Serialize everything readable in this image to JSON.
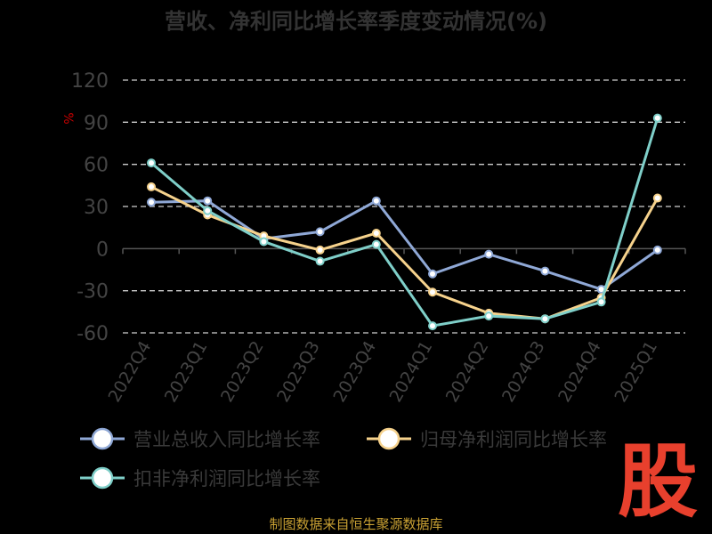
{
  "chart_data": {
    "type": "line",
    "title": "营收、净利同比增长率季度变动情况(%)",
    "unit_label": "%",
    "categories": [
      "2022Q4",
      "2023Q1",
      "2023Q2",
      "2023Q3",
      "2023Q4",
      "2024Q1",
      "2024Q2",
      "2024Q3",
      "2024Q4",
      "2025Q1"
    ],
    "ylim": [
      -60,
      120
    ],
    "yticks": [
      120,
      90,
      60,
      30,
      0,
      -30,
      -60
    ],
    "grid": true,
    "legend_position": "bottom",
    "series": [
      {
        "name": "营业总收入同比增长率",
        "color": "#8fa8d6",
        "values": [
          33,
          34,
          7,
          12,
          34,
          -18,
          -4,
          -16,
          -29,
          -1
        ]
      },
      {
        "name": "归母净利润同比增长率",
        "color": "#f6d28c",
        "values": [
          44,
          24,
          9,
          -1,
          11,
          -31,
          -46,
          -50,
          -35,
          36
        ]
      },
      {
        "name": "扣非净利润同比增长率",
        "color": "#7fcfc9",
        "values": [
          61,
          27,
          5,
          -9,
          3,
          -55,
          -48,
          -50,
          -38,
          93
        ]
      }
    ]
  },
  "source_text": "制图数据来自恒生聚源数据库",
  "logo_text": "股"
}
